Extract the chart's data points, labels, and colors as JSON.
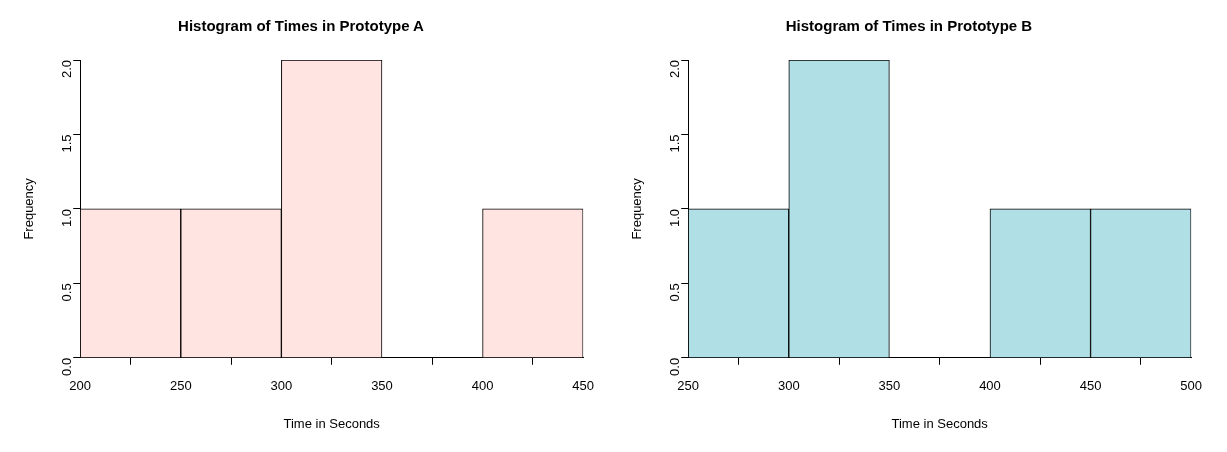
{
  "chart_data": [
    {
      "type": "histogram",
      "title": "Histogram of Times in Prototype A",
      "xlabel": "Time in Seconds",
      "ylabel": "Frequency",
      "bins": [
        200,
        250,
        300,
        350,
        400,
        450
      ],
      "values": [
        1,
        1,
        2,
        0,
        1
      ],
      "color": "#ffe4e1",
      "xlim": [
        200,
        450
      ],
      "xticks": [
        200,
        250,
        300,
        350,
        400,
        450
      ],
      "ylim": [
        0,
        2
      ],
      "yticks": [
        {
          "value": 0,
          "label": "0.0"
        },
        {
          "value": 0.5,
          "label": "0.5"
        },
        {
          "value": 1,
          "label": "1.0"
        },
        {
          "value": 1.5,
          "label": "1.5"
        },
        {
          "value": 2,
          "label": "2.0"
        }
      ]
    },
    {
      "type": "histogram",
      "title": "Histogram of Times in Prototype B",
      "xlabel": "Time in Seconds",
      "ylabel": "Frequency",
      "bins": [
        250,
        300,
        350,
        400,
        450,
        500
      ],
      "values": [
        1,
        2,
        0,
        1,
        1
      ],
      "color": "#b0e0e6",
      "xlim": [
        250,
        500
      ],
      "xticks": [
        250,
        300,
        350,
        400,
        450,
        500
      ],
      "ylim": [
        0,
        2
      ],
      "yticks": [
        {
          "value": 0,
          "label": "0.0"
        },
        {
          "value": 0.5,
          "label": "0.5"
        },
        {
          "value": 1,
          "label": "1.0"
        },
        {
          "value": 1.5,
          "label": "1.5"
        },
        {
          "value": 2,
          "label": "2.0"
        }
      ]
    }
  ]
}
